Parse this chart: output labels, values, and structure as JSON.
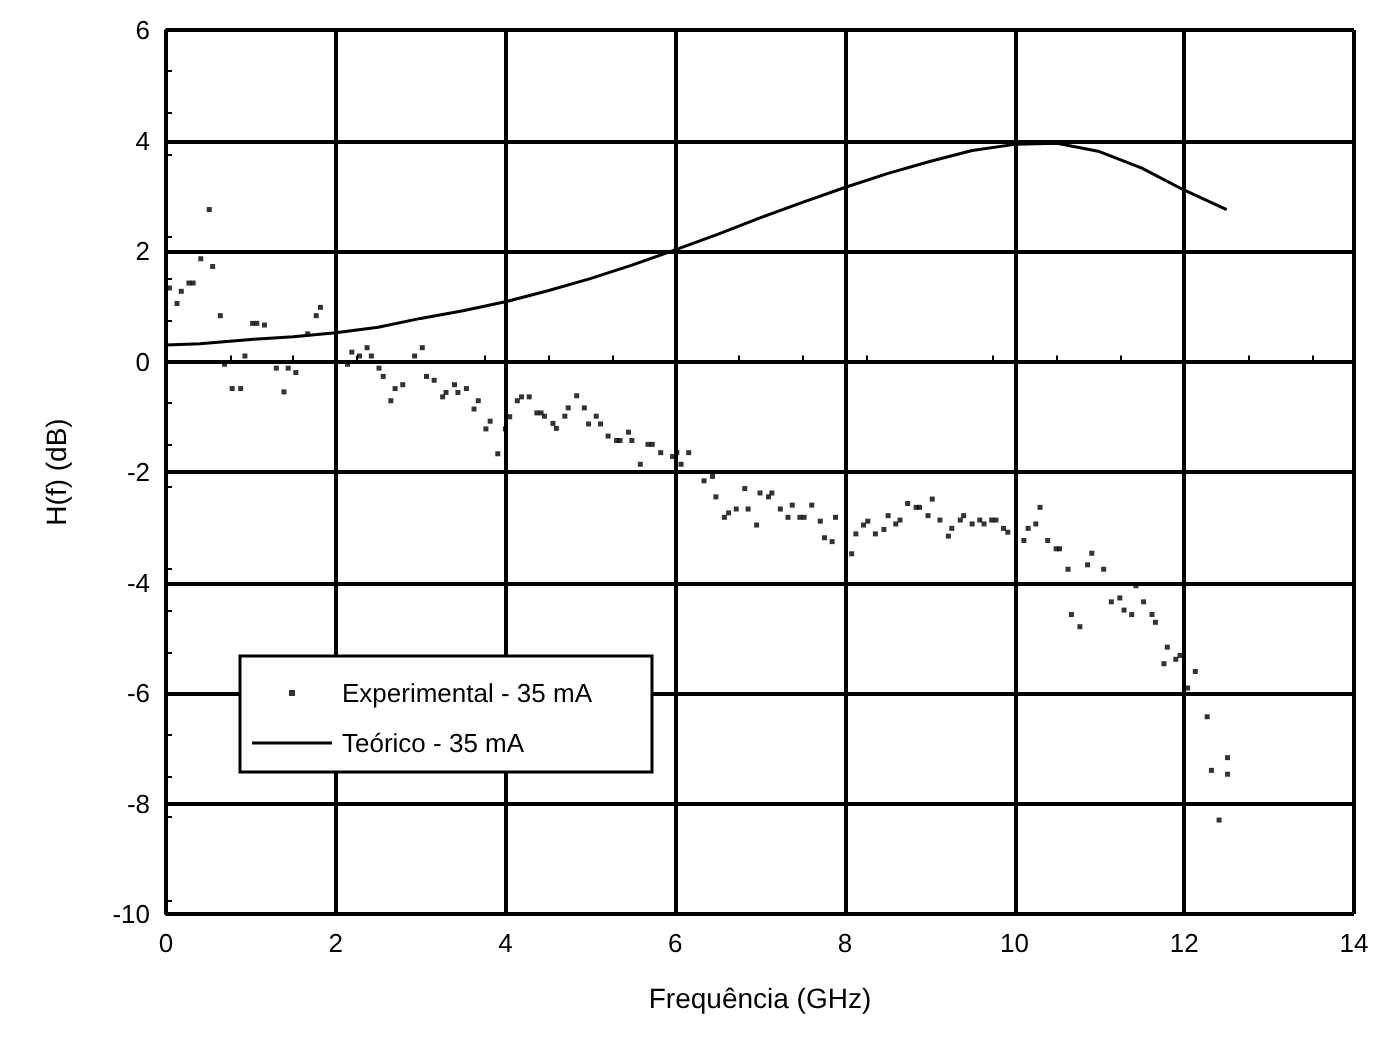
{
  "chart_data": {
    "type": "scatter",
    "xlabel": "Frequência (GHz)",
    "ylabel": "H(f) (dB)",
    "xlim": [
      0,
      14
    ],
    "xticks": [
      0,
      2,
      4,
      6,
      8,
      10,
      12,
      14
    ],
    "ylim": [
      -10,
      6
    ],
    "yticks": [
      -10,
      -8,
      -6,
      -4,
      -2,
      0,
      2,
      4,
      6
    ],
    "grid": true,
    "legend": "left",
    "series": [
      {
        "name": "Experimental - 35 mA",
        "marker": "square",
        "color": "#000000",
        "x": [
          0.04,
          0.13,
          0.18,
          0.27,
          0.32,
          0.41,
          0.51,
          0.55,
          0.64,
          0.69,
          0.78,
          0.88,
          0.93,
          1.02,
          1.07,
          1.16,
          1.3,
          1.39,
          1.44,
          1.53,
          1.67,
          1.77,
          1.82,
          2.14,
          2.19,
          2.28,
          2.37,
          2.42,
          2.51,
          2.56,
          2.65,
          2.7,
          2.79,
          2.93,
          3.02,
          3.07,
          3.16,
          3.26,
          3.3,
          3.4,
          3.44,
          3.54,
          3.63,
          3.68,
          3.77,
          3.82,
          3.91,
          4.0,
          4.05,
          4.14,
          4.19,
          4.28,
          4.37,
          4.42,
          4.46,
          4.56,
          4.6,
          4.7,
          4.74,
          4.84,
          4.93,
          4.98,
          5.07,
          5.12,
          5.21,
          5.31,
          5.35,
          5.45,
          5.49,
          5.59,
          5.68,
          5.73,
          5.83,
          5.97,
          6.02,
          6.07,
          6.16,
          6.34,
          6.44,
          6.48,
          6.58,
          6.63,
          6.72,
          6.82,
          6.86,
          6.96,
          7.0,
          7.1,
          7.14,
          7.24,
          7.33,
          7.38,
          7.47,
          7.52,
          7.61,
          7.71,
          7.76,
          7.85,
          7.89,
          8.08,
          8.13,
          8.22,
          8.27,
          8.36,
          8.46,
          8.51,
          8.6,
          8.65,
          8.74,
          8.84,
          8.88,
          8.98,
          9.03,
          9.12,
          9.22,
          9.26,
          9.36,
          9.4,
          9.5,
          9.59,
          9.64,
          9.73,
          9.78,
          9.87,
          9.92,
          10.11,
          10.16,
          10.25,
          10.3,
          10.39,
          10.49,
          10.53,
          10.63,
          10.67,
          10.77,
          10.86,
          10.91,
          11.05,
          11.14,
          11.24,
          11.29,
          11.38,
          11.43,
          11.52,
          11.62,
          11.66,
          11.76,
          11.8,
          11.9,
          11.95,
          12.04,
          12.13,
          12.27,
          12.32,
          12.41,
          12.51,
          12.51
        ],
        "values": [
          1.33,
          1.05,
          1.27,
          1.42,
          1.42,
          1.86,
          2.75,
          1.72,
          0.83,
          -0.05,
          -0.49,
          -0.49,
          0.1,
          0.69,
          0.69,
          0.66,
          -0.12,
          -0.55,
          -0.12,
          -0.2,
          0.5,
          0.83,
          0.98,
          -0.05,
          0.17,
          0.1,
          0.25,
          0.1,
          -0.12,
          -0.27,
          -0.71,
          -0.49,
          -0.42,
          0.1,
          0.25,
          -0.27,
          -0.34,
          -0.64,
          -0.56,
          -0.42,
          -0.56,
          -0.49,
          -0.86,
          -0.71,
          -1.22,
          -1.08,
          -1.67,
          -1.22,
          -1.0,
          -0.71,
          -0.64,
          -0.64,
          -0.93,
          -0.93,
          -0.99,
          -1.12,
          -1.21,
          -0.99,
          -0.84,
          -0.62,
          -0.84,
          -1.13,
          -0.99,
          -1.13,
          -1.35,
          -1.43,
          -1.43,
          -1.28,
          -1.43,
          -1.86,
          -1.5,
          -1.5,
          -1.65,
          -1.72,
          -1.65,
          -1.86,
          -1.65,
          -2.16,
          -2.08,
          -2.45,
          -2.82,
          -2.74,
          -2.67,
          -2.3,
          -2.67,
          -2.96,
          -2.38,
          -2.45,
          -2.38,
          -2.67,
          -2.82,
          -2.6,
          -2.82,
          -2.82,
          -2.6,
          -2.89,
          -3.19,
          -3.26,
          -2.82,
          -3.48,
          -3.12,
          -2.96,
          -2.89,
          -3.12,
          -3.04,
          -2.79,
          -2.94,
          -2.87,
          -2.57,
          -2.64,
          -2.64,
          -2.79,
          -2.49,
          -2.87,
          -3.16,
          -3.02,
          -2.87,
          -2.79,
          -2.94,
          -2.87,
          -2.94,
          -2.87,
          -2.87,
          -3.02,
          -3.09,
          -3.24,
          -3.02,
          -2.94,
          -2.64,
          -3.24,
          -3.39,
          -3.39,
          -3.76,
          -4.58,
          -4.8,
          -3.68,
          -3.47,
          -3.76,
          -4.35,
          -4.28,
          -4.5,
          -4.58,
          -4.06,
          -4.35,
          -4.58,
          -4.72,
          -5.47,
          -5.17,
          -5.39,
          -5.32,
          -5.91,
          -5.61,
          -6.43,
          -7.4,
          -8.3,
          -7.17,
          -7.47
        ]
      },
      {
        "name": "Teórico - 35 mA",
        "type": "line",
        "marker": "none",
        "line_style": "solid",
        "color": "#000000",
        "x": [
          0,
          0.4,
          1,
          1.5,
          2,
          2.5,
          3,
          3.5,
          4,
          4.5,
          5,
          5.5,
          6,
          6.5,
          7,
          7.5,
          8,
          8.5,
          9,
          9.5,
          10,
          10.5,
          11,
          11.5,
          12,
          12.5
        ],
        "values": [
          0.3,
          0.32,
          0.4,
          0.45,
          0.52,
          0.62,
          0.78,
          0.92,
          1.08,
          1.28,
          1.5,
          1.75,
          2.02,
          2.3,
          2.6,
          2.88,
          3.15,
          3.4,
          3.62,
          3.82,
          3.93,
          3.95,
          3.8,
          3.5,
          3.1,
          2.75
        ]
      }
    ]
  }
}
